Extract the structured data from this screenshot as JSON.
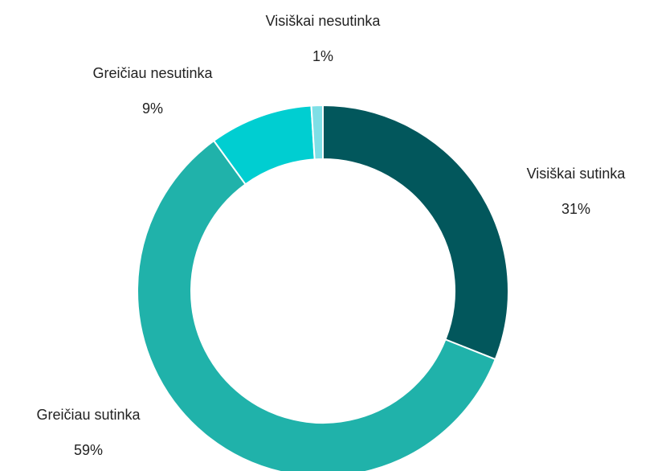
{
  "chart_data": {
    "type": "pie",
    "categories": [
      "Visiškai sutinka",
      "Greičiau sutinka",
      "Greičiau nesutinka",
      "Visiškai nesutinka"
    ],
    "values": [
      31,
      59,
      9,
      1
    ],
    "value_labels": [
      "31%",
      "59%",
      "9%",
      "1%"
    ],
    "colors": [
      "#02575c",
      "#20b2aa",
      "#00ced1",
      "#7fdfe6"
    ]
  }
}
